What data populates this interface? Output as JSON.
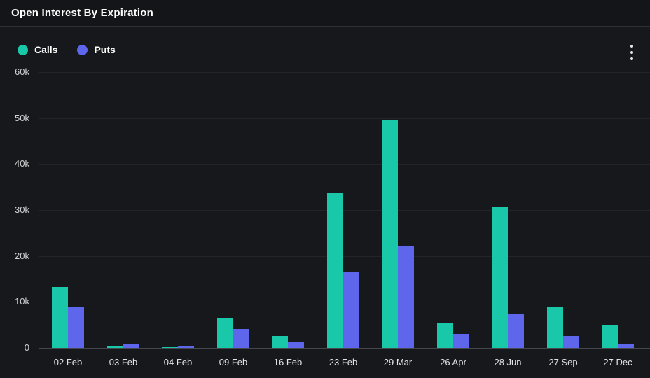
{
  "header": {
    "title": "Open Interest By Expiration"
  },
  "menu": {
    "kebab_tooltip": "Chart context menu"
  },
  "colors": {
    "background": "#17181b",
    "header_background": "#141519",
    "divider": "#2e3034",
    "gridline": "#222429",
    "axis_line": "#43464b",
    "calls": "#18c8a8",
    "puts": "#5e66eb",
    "text": "#ffffff"
  },
  "chart_data": {
    "type": "bar",
    "title": "Open Interest By Expiration",
    "categories": [
      "02 Feb",
      "03 Feb",
      "04 Feb",
      "09 Feb",
      "16 Feb",
      "23 Feb",
      "29 Mar",
      "26 Apr",
      "28 Jun",
      "27 Sep",
      "27 Dec"
    ],
    "series": [
      {
        "name": "Calls",
        "color": "#18c8a8",
        "values": [
          13300,
          450,
          100,
          6500,
          2600,
          33600,
          49700,
          5400,
          30700,
          9000,
          5100
        ]
      },
      {
        "name": "Puts",
        "color": "#5e66eb",
        "values": [
          8800,
          700,
          350,
          4100,
          1300,
          16500,
          22100,
          3000,
          7300,
          2600,
          700
        ]
      }
    ],
    "xlabel": "",
    "ylabel": "",
    "ylim": [
      0,
      60000
    ],
    "ytick_step": 10000,
    "ytick_labels": [
      "0",
      "10k",
      "20k",
      "30k",
      "40k",
      "50k",
      "60k"
    ],
    "grid": "horizontal",
    "legend_position": "top-left"
  }
}
